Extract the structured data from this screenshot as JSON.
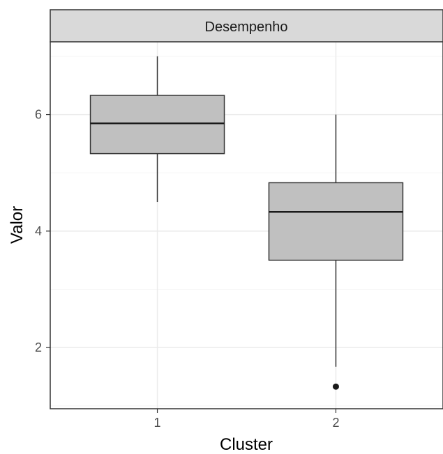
{
  "chart_data": {
    "type": "box",
    "facet_label": "Desempenho",
    "xlabel": "Cluster",
    "ylabel": "Valor",
    "categories": [
      "1",
      "2"
    ],
    "ylim": [
      0.95,
      7.25
    ],
    "yticks": [
      2,
      4,
      6
    ],
    "grid": true,
    "boxes": [
      {
        "category": "1",
        "whisker_low": 4.5,
        "q1": 5.33,
        "median": 5.85,
        "q3": 6.33,
        "whisker_high": 7.0,
        "outliers": []
      },
      {
        "category": "2",
        "whisker_low": 1.67,
        "q1": 3.5,
        "median": 4.33,
        "q3": 4.83,
        "whisker_high": 6.0,
        "outliers": [
          1.33
        ]
      }
    ],
    "colors": {
      "box_fill": "#c0c0c0",
      "box_stroke": "#333333",
      "strip_fill": "#d9d9d9",
      "grid_major": "#ebebeb",
      "grid_minor": "#f5f5f5",
      "panel_border": "#333333"
    }
  }
}
